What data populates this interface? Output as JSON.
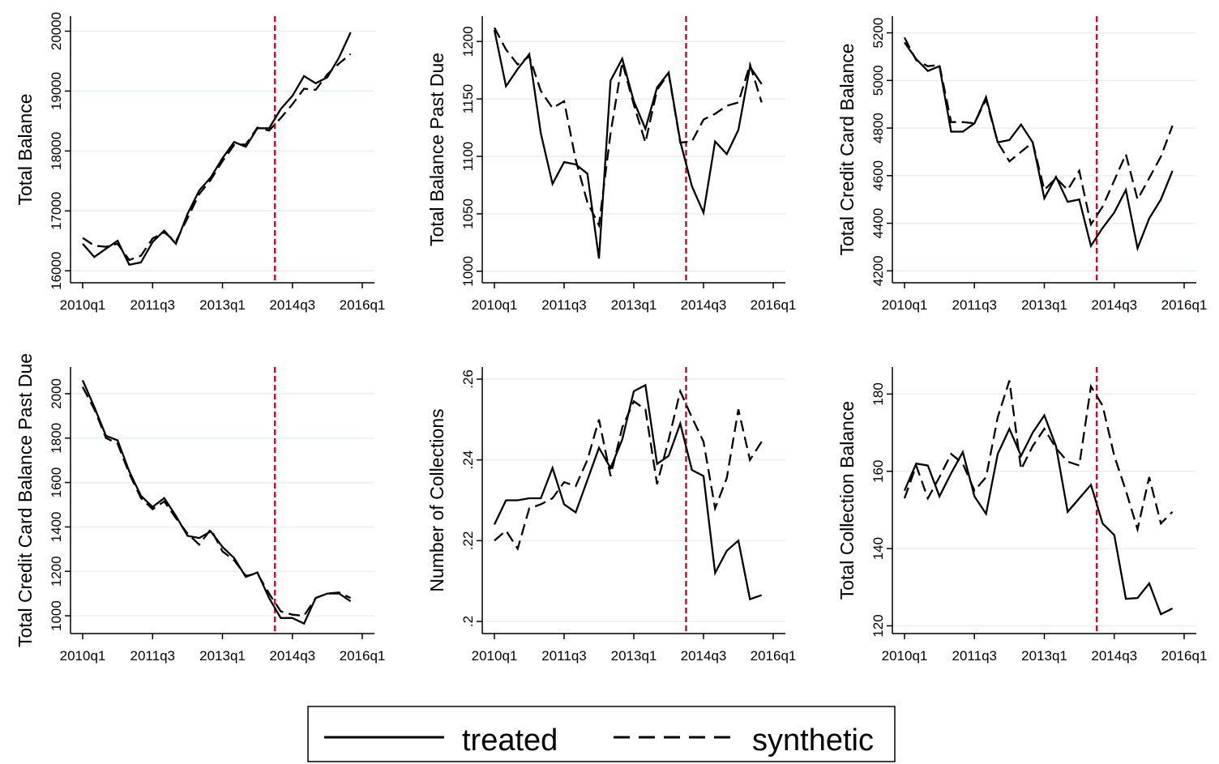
{
  "legend": {
    "treated_label": "treated",
    "synthetic_label": "synthetic",
    "placement": "bottom-center"
  },
  "style": {
    "treated_color": "#000000",
    "synthetic_color": "#000000",
    "vline_color": "#c8102e",
    "grid_color": "#e9eef2",
    "background": "#ffffff"
  },
  "chart_data": [
    {
      "type": "line",
      "ylabel": "Total Balance",
      "xticks": [
        "2010q1",
        "2011q3",
        "2013q1",
        "2014q3",
        "2016q1"
      ],
      "yticks": [
        16000,
        17000,
        18000,
        19000,
        20000
      ],
      "ylim": [
        15800,
        20250
      ],
      "treatment_quarter": "2014q1",
      "x": [
        "2010q1",
        "2010q2",
        "2010q3",
        "2010q4",
        "2011q1",
        "2011q2",
        "2011q3",
        "2011q4",
        "2012q1",
        "2012q2",
        "2012q3",
        "2012q4",
        "2013q1",
        "2013q2",
        "2013q3",
        "2013q4",
        "2014q1",
        "2014q2",
        "2014q3",
        "2014q4",
        "2015q1",
        "2015q2",
        "2015q3",
        "2015q4"
      ],
      "series": [
        {
          "name": "treated",
          "values": [
            16450,
            16230,
            16370,
            16500,
            16100,
            16140,
            16480,
            16670,
            16450,
            16950,
            17340,
            17560,
            17880,
            18150,
            18070,
            18380,
            18380,
            18700,
            18920,
            19250,
            19130,
            19230,
            19560,
            19980
          ]
        },
        {
          "name": "synthetic",
          "values": [
            16550,
            16420,
            16400,
            16450,
            16180,
            16250,
            16540,
            16640,
            16490,
            16880,
            17280,
            17520,
            17830,
            18100,
            18110,
            18390,
            18340,
            18550,
            18780,
            19040,
            19020,
            19280,
            19460,
            19620
          ]
        }
      ]
    },
    {
      "type": "line",
      "ylabel": "Total Balance Past Due",
      "xticks": [
        "2010q1",
        "2011q3",
        "2013q1",
        "2014q3",
        "2016q1"
      ],
      "yticks": [
        1000,
        1050,
        1100,
        1150,
        1200
      ],
      "ylim": [
        990,
        1222
      ],
      "treatment_quarter": "2014q1",
      "x": [
        "2010q1",
        "2010q2",
        "2010q3",
        "2010q4",
        "2011q1",
        "2011q2",
        "2011q3",
        "2011q4",
        "2012q1",
        "2012q2",
        "2012q3",
        "2012q4",
        "2013q1",
        "2013q2",
        "2013q3",
        "2013q4",
        "2014q1",
        "2014q2",
        "2014q3",
        "2014q4",
        "2015q1",
        "2015q2",
        "2015q3",
        "2015q4"
      ],
      "series": [
        {
          "name": "treated",
          "values": [
            1210,
            1161,
            1176,
            1189,
            1120,
            1076,
            1095,
            1093,
            1085,
            1011,
            1166,
            1185,
            1148,
            1124,
            1160,
            1173,
            1113,
            1074,
            1051,
            1113,
            1102,
            1123,
            1178,
            1163
          ]
        },
        {
          "name": "synthetic",
          "values": [
            1212,
            1193,
            1180,
            1187,
            1157,
            1142,
            1148,
            1097,
            1060,
            1040,
            1120,
            1182,
            1145,
            1112,
            1158,
            1172,
            1112,
            1113,
            1132,
            1137,
            1144,
            1147,
            1180,
            1147
          ]
        }
      ]
    },
    {
      "type": "line",
      "ylabel": "Total Credit Card Balance",
      "xticks": [
        "2010q1",
        "2011q3",
        "2013q1",
        "2014q3",
        "2016q1"
      ],
      "yticks": [
        4200,
        4400,
        4600,
        4800,
        5000,
        5200
      ],
      "ylim": [
        4150,
        5270
      ],
      "treatment_quarter": "2014q1",
      "x": [
        "2010q1",
        "2010q2",
        "2010q3",
        "2010q4",
        "2011q1",
        "2011q2",
        "2011q3",
        "2011q4",
        "2012q1",
        "2012q2",
        "2012q3",
        "2012q4",
        "2013q1",
        "2013q2",
        "2013q3",
        "2013q4",
        "2014q1",
        "2014q2",
        "2014q3",
        "2014q4",
        "2015q1",
        "2015q2",
        "2015q3",
        "2015q4"
      ],
      "series": [
        {
          "name": "treated",
          "values": [
            5160,
            5090,
            5040,
            5060,
            4785,
            4785,
            4820,
            4930,
            4740,
            4750,
            4815,
            4740,
            4505,
            4595,
            4490,
            4500,
            4305,
            4380,
            4445,
            4540,
            4295,
            4420,
            4500,
            4620
          ]
        },
        {
          "name": "synthetic",
          "values": [
            5180,
            5085,
            5060,
            5065,
            4825,
            4825,
            4820,
            4920,
            4740,
            4660,
            4700,
            4740,
            4540,
            4590,
            4540,
            4620,
            4395,
            4470,
            4580,
            4690,
            4500,
            4590,
            4680,
            4810
          ]
        }
      ]
    },
    {
      "type": "line",
      "ylabel": "Total Credit Card Balance Past Due",
      "xticks": [
        "2010q1",
        "2011q3",
        "2013q1",
        "2014q3",
        "2016q1"
      ],
      "yticks": [
        1000,
        1200,
        1400,
        1600,
        1800,
        2000
      ],
      "ylim": [
        920,
        2120
      ],
      "treatment_quarter": "2014q1",
      "x": [
        "2010q1",
        "2010q2",
        "2010q3",
        "2010q4",
        "2011q1",
        "2011q2",
        "2011q3",
        "2011q4",
        "2012q1",
        "2012q2",
        "2012q3",
        "2012q4",
        "2013q1",
        "2013q2",
        "2013q3",
        "2013q4",
        "2014q1",
        "2014q2",
        "2014q3",
        "2014q4",
        "2015q1",
        "2015q2",
        "2015q3",
        "2015q4"
      ],
      "series": [
        {
          "name": "treated",
          "values": [
            2060,
            1940,
            1810,
            1790,
            1650,
            1540,
            1490,
            1530,
            1450,
            1360,
            1350,
            1380,
            1310,
            1260,
            1175,
            1195,
            1080,
            990,
            990,
            965,
            1080,
            1100,
            1100,
            1065
          ]
        },
        {
          "name": "synthetic",
          "values": [
            2030,
            1930,
            1800,
            1775,
            1640,
            1530,
            1480,
            1515,
            1440,
            1370,
            1320,
            1390,
            1290,
            1250,
            1180,
            1190,
            1100,
            1020,
            1005,
            1000,
            1080,
            1100,
            1105,
            1080
          ]
        }
      ]
    },
    {
      "type": "line",
      "ylabel": "Number of Collections",
      "xticks": [
        "2010q1",
        "2011q3",
        "2013q1",
        "2014q3",
        "2016q1"
      ],
      "yticks": [
        0.2,
        0.22,
        0.24,
        0.26
      ],
      "ytick_labels": [
        ".2",
        ".22",
        ".24",
        ".26"
      ],
      "ylim": [
        0.197,
        0.263
      ],
      "treatment_quarter": "2014q1",
      "x": [
        "2010q1",
        "2010q2",
        "2010q3",
        "2010q4",
        "2011q1",
        "2011q2",
        "2011q3",
        "2011q4",
        "2012q1",
        "2012q2",
        "2012q3",
        "2012q4",
        "2013q1",
        "2013q2",
        "2013q3",
        "2013q4",
        "2014q1",
        "2014q2",
        "2014q3",
        "2014q4",
        "2015q1",
        "2015q2",
        "2015q3",
        "2015q4"
      ],
      "series": [
        {
          "name": "treated",
          "values": [
            0.224,
            0.23,
            0.23,
            0.2305,
            0.2305,
            0.238,
            0.229,
            0.227,
            0.235,
            0.243,
            0.238,
            0.245,
            0.257,
            0.2585,
            0.239,
            0.241,
            0.249,
            0.2375,
            0.236,
            0.212,
            0.2175,
            0.22,
            0.2055,
            0.2065
          ]
        },
        {
          "name": "synthetic",
          "values": [
            0.22,
            0.2225,
            0.218,
            0.228,
            0.229,
            0.2305,
            0.2345,
            0.2335,
            0.24,
            0.25,
            0.236,
            0.248,
            0.2545,
            0.2525,
            0.234,
            0.245,
            0.257,
            0.2505,
            0.2445,
            0.228,
            0.2355,
            0.2525,
            0.24,
            0.2445
          ]
        }
      ]
    },
    {
      "type": "line",
      "ylabel": "Total Collection Balance",
      "xticks": [
        "2010q1",
        "2011q3",
        "2013q1",
        "2014q3",
        "2016q1"
      ],
      "yticks": [
        120,
        140,
        160,
        180
      ],
      "ylim": [
        118,
        187
      ],
      "treatment_quarter": "2014q1",
      "x": [
        "2010q1",
        "2010q2",
        "2010q3",
        "2010q4",
        "2011q1",
        "2011q2",
        "2011q3",
        "2011q4",
        "2012q1",
        "2012q2",
        "2012q3",
        "2012q4",
        "2013q1",
        "2013q2",
        "2013q3",
        "2013q4",
        "2014q1",
        "2014q2",
        "2014q3",
        "2014q4",
        "2015q1",
        "2015q2",
        "2015q3",
        "2015q4"
      ],
      "series": [
        {
          "name": "treated",
          "values": [
            155,
            162,
            161.5,
            153.5,
            159.5,
            165,
            153.5,
            149,
            164.5,
            171,
            164,
            170,
            174.5,
            166.5,
            149.5,
            153,
            156.5,
            146.5,
            143.5,
            127,
            127.2,
            131,
            123,
            124.5
          ]
        },
        {
          "name": "synthetic",
          "values": [
            153,
            161.5,
            153,
            158.5,
            164.5,
            162,
            155,
            158.5,
            174,
            183.5,
            160.5,
            166.5,
            171,
            166,
            162.5,
            161.5,
            182,
            177,
            164,
            155,
            145,
            158.5,
            146.5,
            149.5
          ]
        }
      ]
    }
  ]
}
